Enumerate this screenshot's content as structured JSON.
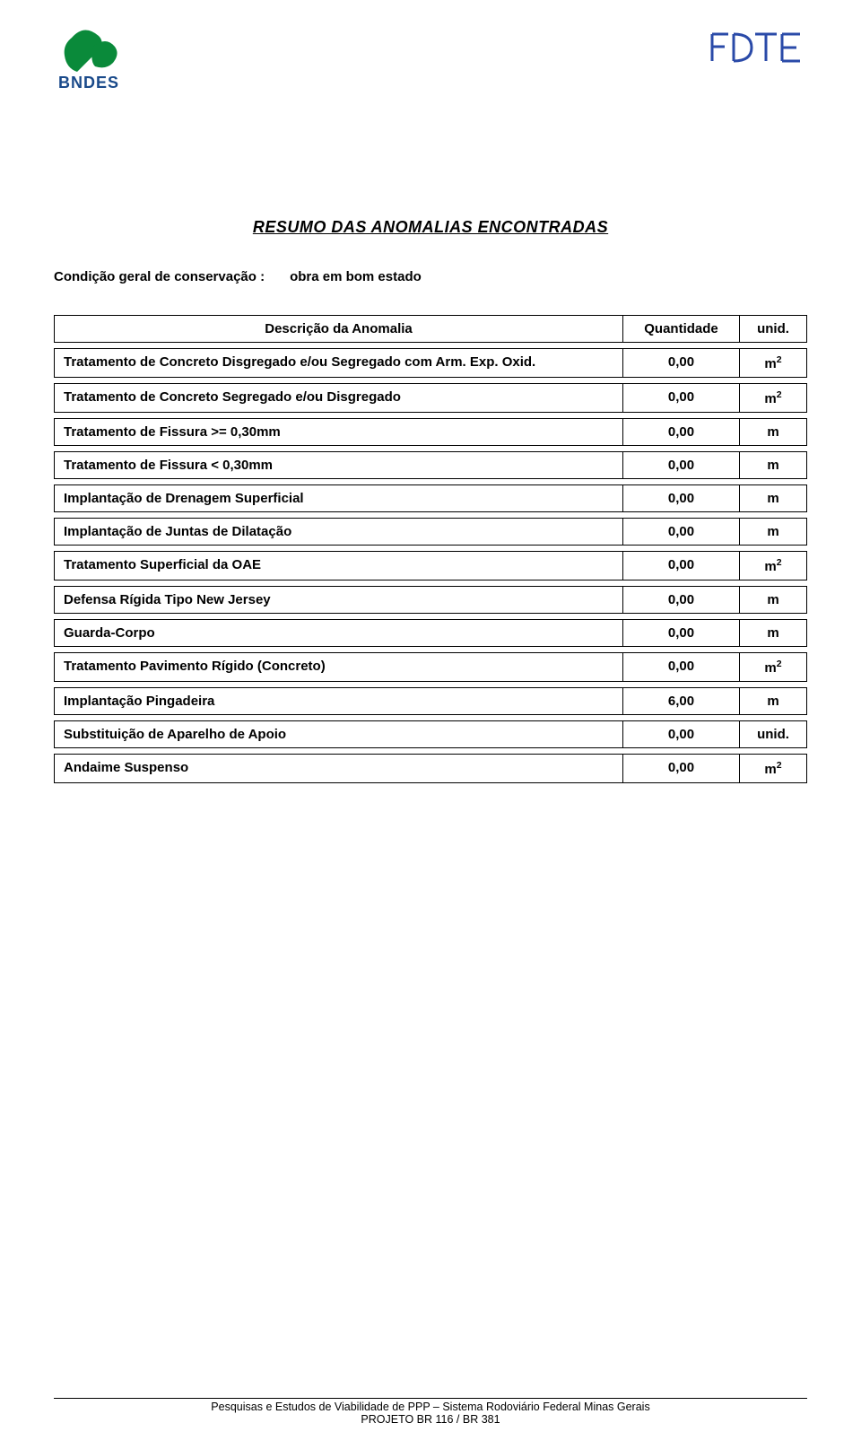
{
  "logos": {
    "bndes_text": "BNDES",
    "bndes_color": "#1a4a8a",
    "bndes_shape_color": "#0a8a3a",
    "fdte_text": "FDTE",
    "fdte_color": "#2a4aa8"
  },
  "title": "RESUMO DAS ANOMALIAS ENCONTRADAS",
  "condition": {
    "label": "Condição geral de conservação :",
    "value": "obra em bom estado"
  },
  "table": {
    "columns": {
      "desc": "Descrição da Anomalia",
      "qty": "Quantidade",
      "unit": "unid."
    },
    "rows": [
      {
        "desc": "Tratamento de Concreto Disgregado e/ou Segregado com Arm. Exp. Oxid.",
        "qty": "0,00",
        "unit": "m²"
      },
      {
        "desc": "Tratamento de Concreto Segregado e/ou Disgregado",
        "qty": "0,00",
        "unit": "m²"
      },
      {
        "desc": "Tratamento de Fissura >= 0,30mm",
        "qty": "0,00",
        "unit": "m"
      },
      {
        "desc": "Tratamento de Fissura < 0,30mm",
        "qty": "0,00",
        "unit": "m"
      },
      {
        "desc": "Implantação de Drenagem Superficial",
        "qty": "0,00",
        "unit": "m"
      },
      {
        "desc": "Implantação de Juntas de Dilatação",
        "qty": "0,00",
        "unit": "m"
      },
      {
        "desc": "Tratamento Superficial da OAE",
        "qty": "0,00",
        "unit": "m²"
      },
      {
        "desc": "Defensa Rígida Tipo New Jersey",
        "qty": "0,00",
        "unit": "m"
      },
      {
        "desc": "Guarda-Corpo",
        "qty": "0,00",
        "unit": "m"
      },
      {
        "desc": "Tratamento Pavimento Rígido (Concreto)",
        "qty": "0,00",
        "unit": "m²"
      },
      {
        "desc": "Implantação Pingadeira",
        "qty": "6,00",
        "unit": "m"
      },
      {
        "desc": "Substituição de Aparelho de Apoio",
        "qty": "0,00",
        "unit": "unid."
      },
      {
        "desc": "Andaime Suspenso",
        "qty": "0,00",
        "unit": "m²"
      }
    ]
  },
  "footer": {
    "line1": "Pesquisas e Estudos de Viabilidade de PPP – Sistema Rodoviário Federal Minas Gerais",
    "line2": "PROJETO BR 116 / BR 381"
  }
}
